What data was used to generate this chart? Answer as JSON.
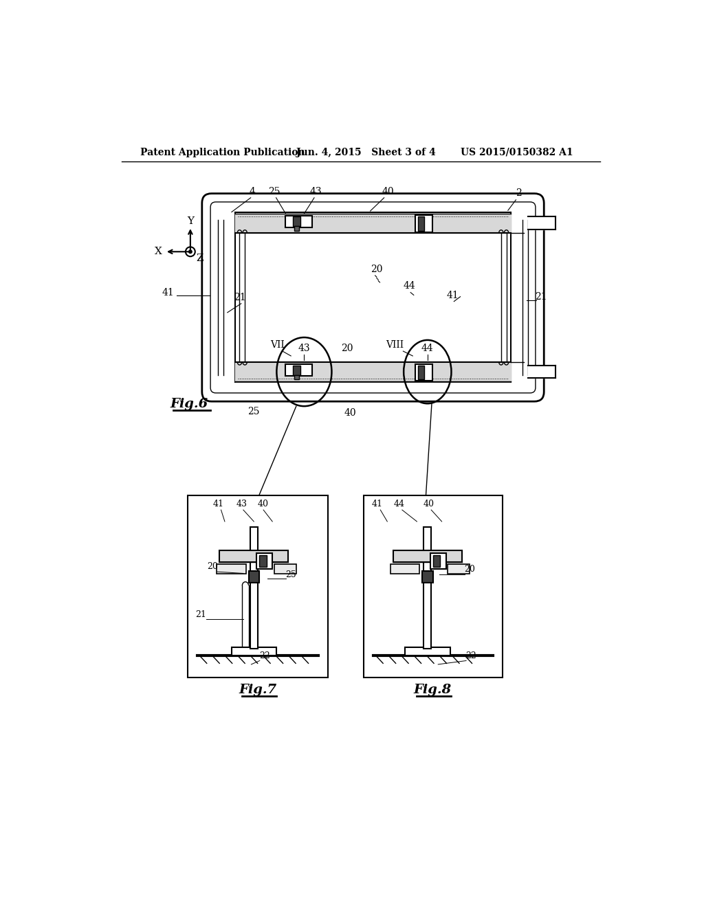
{
  "header_left": "Patent Application Publication",
  "header_mid": "Jun. 4, 2015   Sheet 3 of 4",
  "header_right": "US 2015/0150382 A1",
  "bg_color": "#ffffff",
  "line_color": "#000000"
}
